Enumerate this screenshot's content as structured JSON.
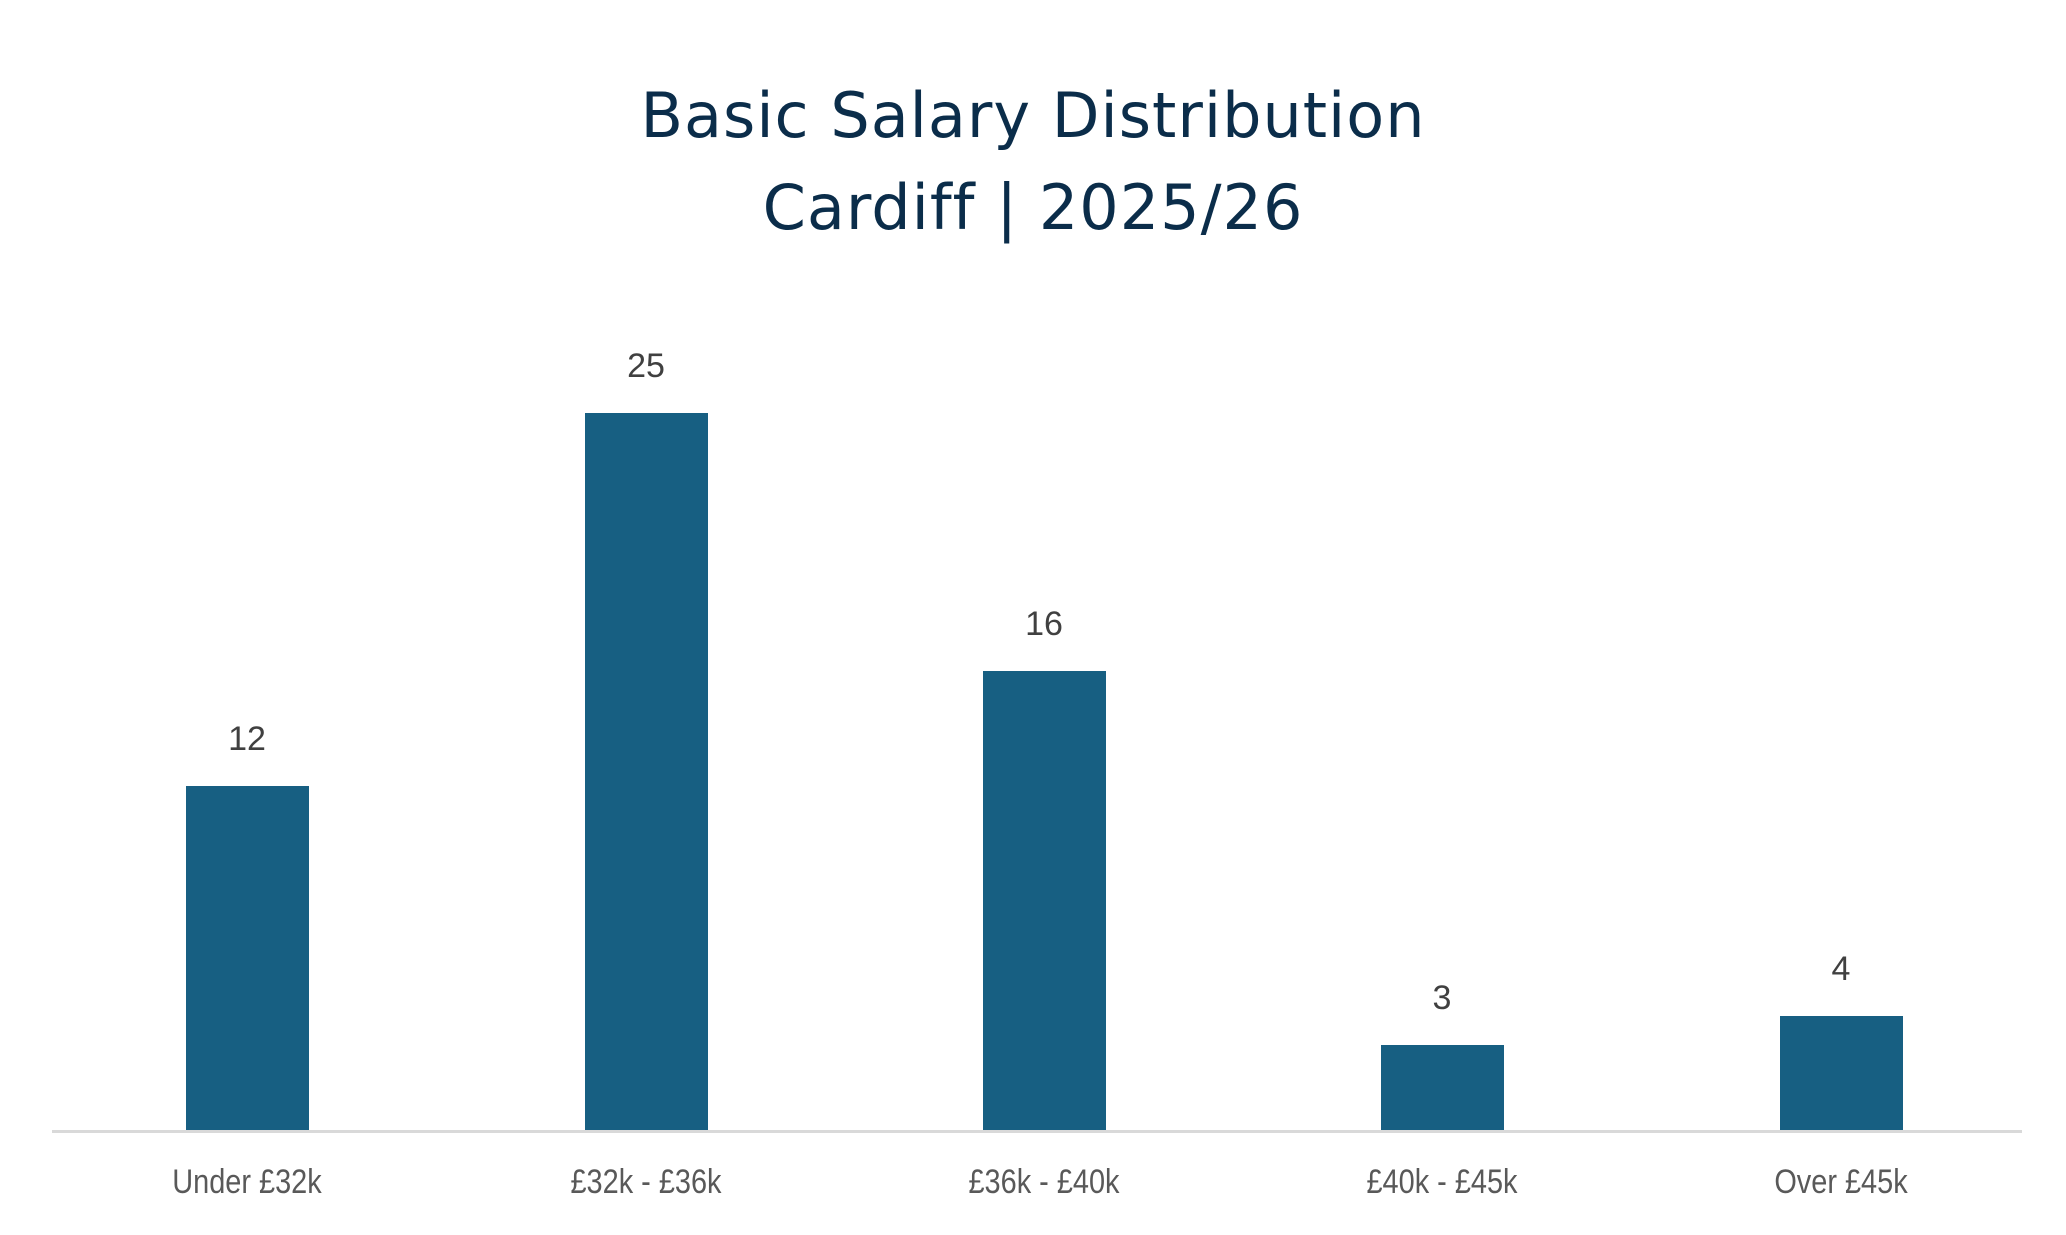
{
  "chart": {
    "title_line1": "Basic Salary Distribution",
    "title_line2": "Cardiff | 2025/26",
    "colors": {
      "bar": "#175f82",
      "title": "#0b2d4a",
      "axis": "#d9d9d9",
      "label": "#595959",
      "value": "#404040"
    }
  },
  "chart_data": {
    "type": "bar",
    "title": "Basic Salary Distribution Cardiff | 2025/26",
    "categories": [
      "Under £32k",
      "£32k - £36k",
      "£36k - £40k",
      "£40k - £45k",
      "Over £45k"
    ],
    "values": [
      12,
      25,
      16,
      3,
      4
    ],
    "xlabel": "",
    "ylabel": "",
    "ylim": [
      0,
      25
    ],
    "grid": false,
    "legend": "none",
    "data_labels": true
  }
}
